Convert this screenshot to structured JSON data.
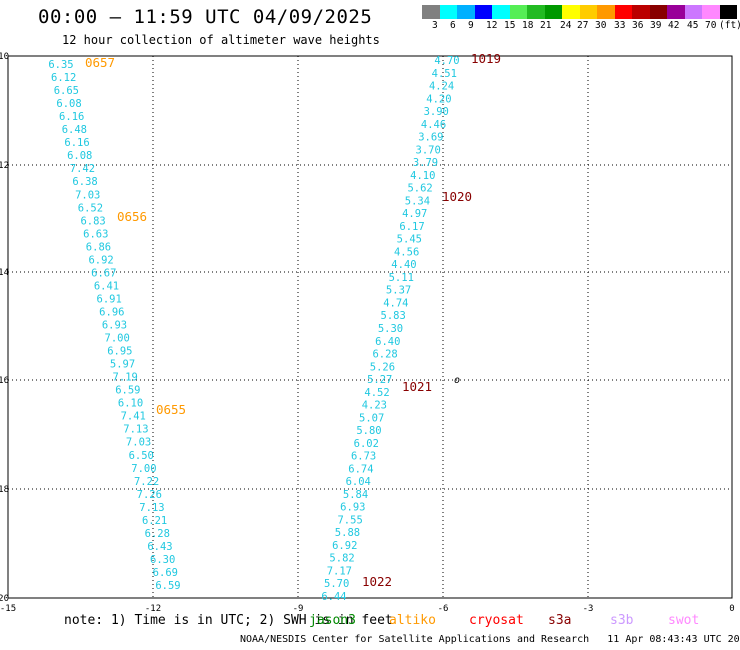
{
  "title": "00:00 – 11:59 UTC 04/09/2025",
  "subtitle": "12 hour collection of altimeter wave heights",
  "colorbar": {
    "colors": [
      "#808080",
      "#00ffff",
      "#00b0ff",
      "#0000ff",
      "#00ffff",
      "#55ee55",
      "#22bb22",
      "#009900",
      "#ffff00",
      "#ffcc00",
      "#ff9900",
      "#ff0000",
      "#bb0000",
      "#880000",
      "#990099",
      "#cc77ff",
      "#ff88ff",
      "#000000"
    ],
    "labels": [
      "3",
      "6",
      "9",
      "12",
      "15",
      "18",
      "21",
      "24",
      "27",
      "30",
      "33",
      "36",
      "39",
      "42",
      "45",
      "70"
    ],
    "unit": "(ft)"
  },
  "map": {
    "lon_ticks": [
      "-15",
      "-12",
      "-9",
      "-6",
      "-3",
      "0"
    ],
    "lat_ticks": [
      "-10",
      "-12",
      "-14",
      "-16",
      "-18",
      "-20"
    ],
    "marker": "o"
  },
  "left_track": {
    "color": "#20c8e0",
    "values": [
      "6.35",
      "6.12",
      "6.65",
      "6.08",
      "6.16",
      "6.48",
      "6.16",
      "6.08",
      "7.42",
      "6.38",
      "7.03",
      "6.52",
      "6.83",
      "6.63",
      "6.86",
      "6.92",
      "6.67",
      "6.41",
      "6.91",
      "6.96",
      "6.93",
      "7.00",
      "6.95",
      "5.97",
      "7.19",
      "6.59",
      "6.10",
      "7.41",
      "7.13",
      "7.03",
      "6.50",
      "7.00",
      "7.22",
      "7.26",
      "7.13",
      "6.21",
      "6.28",
      "6.43",
      "6.30",
      "6.69",
      "6.59"
    ]
  },
  "right_track": {
    "color": "#20c8e0",
    "values": [
      "4.70",
      "4.51",
      "4.24",
      "4.20",
      "3.90",
      "4.46",
      "3.69",
      "3.70",
      "3.79",
      "4.10",
      "5.62",
      "5.34",
      "4.97",
      "6.17",
      "5.45",
      "4.56",
      "4.40",
      "5.11",
      "5.37",
      "4.74",
      "5.83",
      "5.30",
      "6.40",
      "6.28",
      "5.26",
      "5.27",
      "4.52",
      "4.23",
      "5.07",
      "5.80",
      "6.02",
      "6.73",
      "6.74",
      "6.04",
      "5.84",
      "6.93",
      "7.55",
      "5.88",
      "6.92",
      "5.82",
      "7.17",
      "5.70",
      "6.44"
    ]
  },
  "time_labels": [
    {
      "text": "0657",
      "color": "#ff9900"
    },
    {
      "text": "0656",
      "color": "#ff9900"
    },
    {
      "text": "0655",
      "color": "#ff9900"
    },
    {
      "text": "1019",
      "color": "#880000"
    },
    {
      "text": "1020",
      "color": "#880000"
    },
    {
      "text": "1021",
      "color": "#880000"
    },
    {
      "text": "1022",
      "color": "#880000"
    }
  ],
  "note": "note: 1) Time is in UTC; 2) SWH is in feet",
  "legend": [
    {
      "name": "jason3",
      "color": "#008800"
    },
    {
      "name": "altiko",
      "color": "#ff9900"
    },
    {
      "name": "cryosat",
      "color": "#ff0000"
    },
    {
      "name": "s3a",
      "color": "#880000"
    },
    {
      "name": "s3b",
      "color": "#cc99ff"
    },
    {
      "name": "swot",
      "color": "#ff88ff"
    }
  ],
  "footer": "NOAA/NESDIS Center for Satellite Applications and Research   11 Apr 08:43:43 UTC 2025"
}
